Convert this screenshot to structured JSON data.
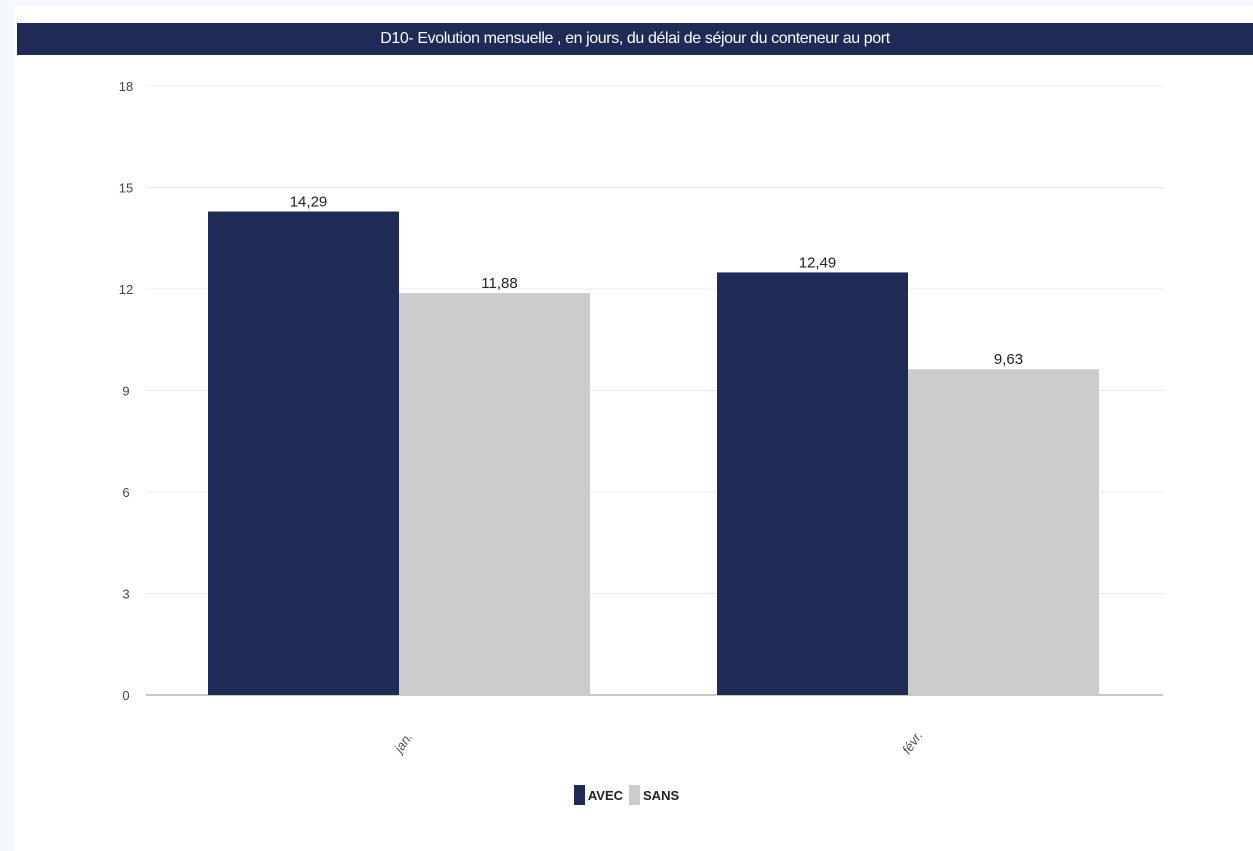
{
  "chart_data": {
    "type": "bar",
    "title": "D10- Evolution mensuelle , en jours, du délai de séjour du conteneur au port",
    "categories": [
      "jan.",
      "févr."
    ],
    "series": [
      {
        "name": "AVEC",
        "color": "#1f2a56",
        "values": [
          14.29,
          12.49
        ],
        "labels": [
          "14,29",
          "12,49"
        ]
      },
      {
        "name": "SANS",
        "color": "#cccccc",
        "values": [
          11.88,
          9.63
        ],
        "labels": [
          "11,88",
          "9,63"
        ]
      }
    ],
    "yticks": [
      0,
      3,
      6,
      9,
      12,
      15,
      18
    ],
    "ylim": [
      0,
      18
    ],
    "grid": true,
    "legend_position": "bottom-center"
  }
}
